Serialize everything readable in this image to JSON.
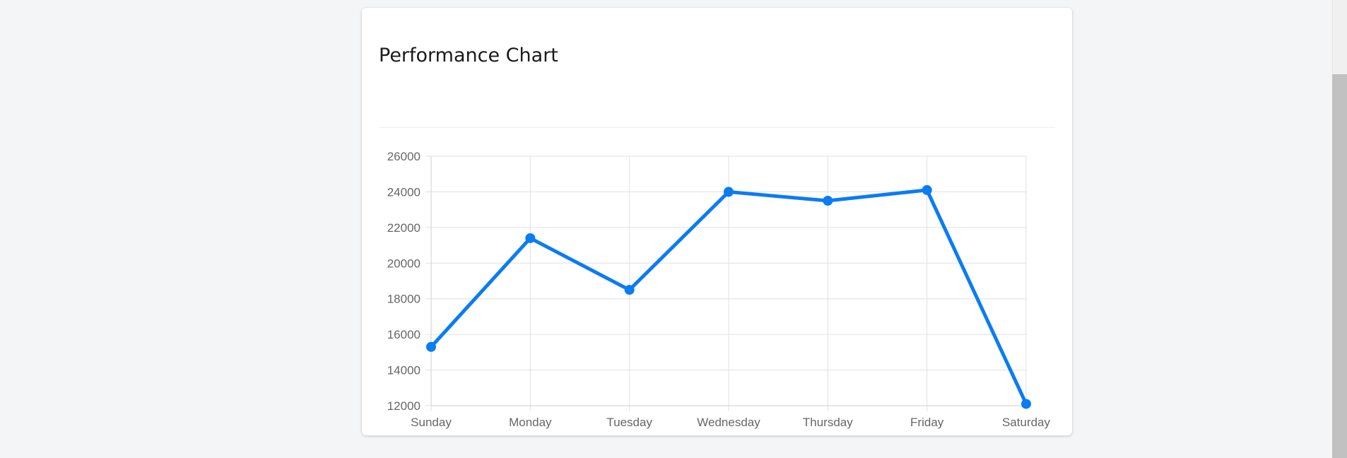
{
  "card": {
    "title": "Performance Chart"
  },
  "chart_data": {
    "type": "line",
    "categories": [
      "Sunday",
      "Monday",
      "Tuesday",
      "Wednesday",
      "Thursday",
      "Friday",
      "Saturday"
    ],
    "series": [
      {
        "values": [
          15300,
          21400,
          18500,
          24000,
          23500,
          24100,
          12100
        ],
        "color": "#0a7cf4"
      }
    ],
    "ylim": [
      12000,
      26000
    ],
    "yticks": [
      26000,
      24000,
      22000,
      20000,
      18000,
      16000,
      14000,
      12000
    ],
    "grid": true,
    "legend": "none"
  },
  "colors": {
    "line": "#0a7cf4",
    "grid": "#e0e0e0",
    "axis_text": "#666666",
    "card": "#ffffff",
    "background": "#f4f5f7"
  }
}
